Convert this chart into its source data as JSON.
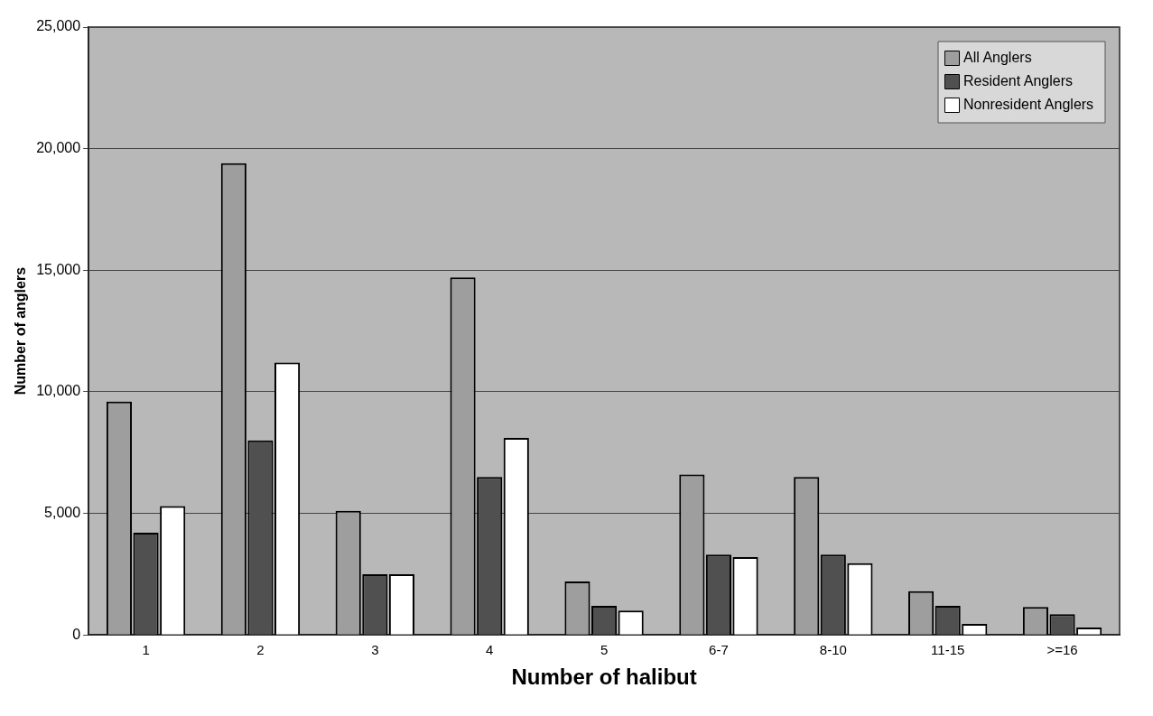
{
  "chart_data": {
    "type": "bar",
    "xlabel": "Number of halibut",
    "ylabel": "Number of anglers",
    "categories": [
      "1",
      "2",
      "3",
      "4",
      "5",
      "6-7",
      "8-10",
      "11-15",
      ">=16"
    ],
    "series": [
      {
        "name": "All Anglers",
        "color": "#9e9e9e",
        "values": [
          9600,
          19400,
          5100,
          14700,
          2200,
          6600,
          6500,
          1800,
          1150
        ]
      },
      {
        "name": "Resident Anglers",
        "color": "#505050",
        "values": [
          4200,
          8000,
          2500,
          6500,
          1200,
          3300,
          3300,
          1200,
          850
        ]
      },
      {
        "name": "Nonresident Anglers",
        "color": "#ffffff",
        "values": [
          5300,
          11200,
          2500,
          8100,
          1000,
          3200,
          2950,
          450,
          300
        ]
      }
    ],
    "ylim": [
      0,
      25000
    ],
    "yticks": [
      {
        "value": 0,
        "label": "0"
      },
      {
        "value": 5000,
        "label": "5,000"
      },
      {
        "value": 10000,
        "label": "10,000"
      },
      {
        "value": 15000,
        "label": "15,000"
      },
      {
        "value": 20000,
        "label": "20,000"
      },
      {
        "value": 25000,
        "label": "25,000"
      }
    ],
    "grid": "y",
    "legend": "top right"
  }
}
